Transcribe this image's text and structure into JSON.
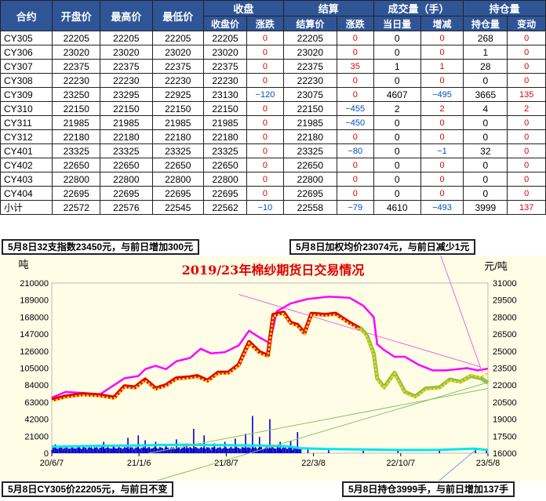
{
  "table": {
    "header_top": {
      "c1": "合约",
      "c2": "开盘价",
      "c3": "最高价",
      "c4": "最低价",
      "settle_group": "收盘",
      "clear_group": "结算",
      "vol_group": "成交量（手）",
      "oi_group": "持仓量"
    },
    "header_sub": {
      "close_price": "收盘价",
      "close_chg": "涨跌",
      "settle_price": "结算价",
      "settle_chg": "涨跌",
      "vol_today": "当日量",
      "vol_chg": "增减",
      "oi_qty": "持仓量",
      "oi_chg": "变动"
    },
    "rows": [
      {
        "c": "CY305",
        "open": "22205",
        "high": "22205",
        "low": "22205",
        "close": "22205",
        "cchg": "0",
        "settle": "22205",
        "schg": "0",
        "vol": "0",
        "vchg": "0",
        "oi": "268",
        "oichg": "0"
      },
      {
        "c": "CY306",
        "open": "23020",
        "high": "23020",
        "low": "23020",
        "close": "23020",
        "cchg": "0",
        "settle": "23020",
        "schg": "0",
        "vol": "0",
        "vchg": "0",
        "oi": "1",
        "oichg": "0"
      },
      {
        "c": "CY307",
        "open": "22375",
        "high": "22375",
        "low": "22375",
        "close": "22375",
        "cchg": "0",
        "settle": "22375",
        "schg": "35",
        "vol": "1",
        "vchg": "1",
        "oi": "28",
        "oichg": "0"
      },
      {
        "c": "CY308",
        "open": "22230",
        "high": "22230",
        "low": "22230",
        "close": "22230",
        "cchg": "0",
        "settle": "22230",
        "schg": "0",
        "vol": "0",
        "vchg": "0",
        "oi": "0",
        "oichg": "0"
      },
      {
        "c": "CY309",
        "open": "23250",
        "high": "23295",
        "low": "22925",
        "close": "23130",
        "cchg": "−120",
        "settle": "23075",
        "schg": "0",
        "vol": "4607",
        "vchg": "−495",
        "oi": "3665",
        "oichg": "135"
      },
      {
        "c": "CY310",
        "open": "22150",
        "high": "22150",
        "low": "22150",
        "close": "22150",
        "cchg": "0",
        "settle": "22150",
        "schg": "−455",
        "vol": "2",
        "vchg": "2",
        "oi": "4",
        "oichg": "2"
      },
      {
        "c": "CY311",
        "open": "21985",
        "high": "21985",
        "low": "21985",
        "close": "21985",
        "cchg": "0",
        "settle": "21985",
        "schg": "−450",
        "vol": "0",
        "vchg": "0",
        "oi": "0",
        "oichg": "0"
      },
      {
        "c": "CY312",
        "open": "22180",
        "high": "22180",
        "low": "22180",
        "close": "22180",
        "cchg": "0",
        "settle": "22180",
        "schg": "0",
        "vol": "0",
        "vchg": "0",
        "oi": "0",
        "oichg": "0"
      },
      {
        "c": "CY401",
        "open": "23325",
        "high": "23325",
        "low": "23325",
        "close": "23325",
        "cchg": "0",
        "settle": "23325",
        "schg": "−80",
        "vol": "0",
        "vchg": "−1",
        "oi": "32",
        "oichg": "0"
      },
      {
        "c": "CY402",
        "open": "22650",
        "high": "22650",
        "low": "22650",
        "close": "22650",
        "cchg": "0",
        "settle": "22650",
        "schg": "0",
        "vol": "0",
        "vchg": "0",
        "oi": "0",
        "oichg": "0"
      },
      {
        "c": "CY403",
        "open": "22800",
        "high": "22800",
        "low": "22800",
        "close": "22800",
        "cchg": "0",
        "settle": "22800",
        "schg": "0",
        "vol": "0",
        "vchg": "0",
        "oi": "0",
        "oichg": "0"
      },
      {
        "c": "CY404",
        "open": "22695",
        "high": "22695",
        "low": "22695",
        "close": "22695",
        "cchg": "0",
        "settle": "22695",
        "schg": "0",
        "vol": "0",
        "vchg": "0",
        "oi": "0",
        "oichg": "0"
      },
      {
        "c": "小计",
        "open": "22572",
        "high": "22576",
        "low": "22545",
        "close": "22562",
        "cchg": "−10",
        "settle": "22558",
        "schg": "−79",
        "vol": "4610",
        "vchg": "−493",
        "oi": "3999",
        "oichg": "137"
      }
    ]
  },
  "callouts": {
    "index": "5月8日32支指数23450元，与前日增加300元",
    "wavg": "5月8日加权均价23074元，与前日减少1元",
    "cy305": "5月8日CY305价22205元，与前日不变",
    "oi": "5月8日持仓3999手，与前日增加137手"
  },
  "colors": {
    "header_bg": "#2f5597",
    "chart_bg": "#fffde6",
    "up": "#e00000",
    "down": "#0050c0",
    "index_line": "#ff00ff",
    "wavg_line": "#ffd700",
    "cont_line": "#e00000",
    "late_line": "#8fc04b",
    "volume": "#0000cc",
    "oi_line": "#00e5ee",
    "trend1": "#e66be6",
    "trend2": "#88c070"
  },
  "chart_data": {
    "type": "line",
    "title": "2019/23年棉纱期货日交易情况",
    "ylabel_left": "吨",
    "ylabel_right": "元/吨",
    "x_ticks": [
      "20/6/7",
      "21/1/6",
      "21/8/7",
      "22/3/8",
      "22/10/7",
      "23/5/8"
    ],
    "y_left_ticks": [
      0,
      21000,
      42000,
      63000,
      84000,
      105000,
      126000,
      147000,
      168000,
      189000,
      210000
    ],
    "y_left_range": [
      0,
      210000
    ],
    "y_right_ticks": [
      16000,
      17500,
      19000,
      20500,
      22000,
      23500,
      25000,
      26500,
      28000,
      29500,
      31000
    ],
    "y_right_range": [
      16000,
      31000
    ],
    "series": [
      {
        "key": "index",
        "axis": "right",
        "points": [
          [
            0,
            20900
          ],
          [
            20,
            21400
          ],
          [
            45,
            21300
          ],
          [
            70,
            21200
          ],
          [
            85,
            21800
          ],
          [
            105,
            22600
          ],
          [
            125,
            22800
          ],
          [
            135,
            23400
          ],
          [
            150,
            23700
          ],
          [
            165,
            23400
          ],
          [
            180,
            24100
          ],
          [
            200,
            24400
          ],
          [
            215,
            25200
          ],
          [
            230,
            24800
          ],
          [
            250,
            24900
          ],
          [
            270,
            25500
          ],
          [
            285,
            26800
          ],
          [
            300,
            26200
          ],
          [
            315,
            25700
          ],
          [
            325,
            28500
          ],
          [
            345,
            29200
          ],
          [
            370,
            29600
          ],
          [
            400,
            29800
          ],
          [
            430,
            29700
          ],
          [
            450,
            29000
          ],
          [
            465,
            28000
          ],
          [
            470,
            25600
          ],
          [
            480,
            25100
          ],
          [
            495,
            24500
          ],
          [
            510,
            24500
          ],
          [
            530,
            23800
          ],
          [
            550,
            23300
          ],
          [
            570,
            23300
          ],
          [
            600,
            23500
          ],
          [
            615,
            23300
          ],
          [
            630,
            23450
          ]
        ]
      },
      {
        "key": "wavg",
        "axis": "right",
        "points": [
          [
            0,
            20600
          ],
          [
            20,
            20900
          ],
          [
            45,
            21100
          ],
          [
            70,
            21000
          ],
          [
            90,
            20800
          ],
          [
            105,
            21800
          ],
          [
            120,
            21700
          ],
          [
            135,
            22400
          ],
          [
            150,
            21600
          ],
          [
            165,
            21900
          ],
          [
            180,
            22500
          ],
          [
            200,
            22600
          ],
          [
            210,
            22700
          ],
          [
            225,
            22300
          ],
          [
            240,
            23000
          ],
          [
            255,
            23000
          ],
          [
            270,
            23700
          ],
          [
            285,
            25700
          ],
          [
            300,
            24800
          ],
          [
            312,
            24500
          ],
          [
            320,
            28100
          ],
          [
            335,
            28300
          ],
          [
            345,
            27400
          ],
          [
            355,
            27200
          ],
          [
            365,
            26500
          ],
          [
            375,
            28200
          ],
          [
            395,
            28100
          ],
          [
            410,
            28200
          ],
          [
            430,
            27400
          ],
          [
            445,
            26900
          ],
          [
            455,
            26300
          ],
          [
            465,
            24700
          ],
          [
            470,
            22500
          ],
          [
            480,
            21700
          ],
          [
            495,
            23000
          ],
          [
            510,
            21300
          ],
          [
            525,
            20900
          ],
          [
            540,
            21600
          ],
          [
            560,
            21700
          ],
          [
            575,
            22400
          ],
          [
            590,
            22200
          ],
          [
            605,
            22900
          ],
          [
            620,
            22700
          ],
          [
            630,
            23074
          ]
        ]
      },
      {
        "key": "cont",
        "axis": "right",
        "points": [
          [
            0,
            20700
          ],
          [
            20,
            21000
          ],
          [
            45,
            21200
          ],
          [
            70,
            21100
          ],
          [
            90,
            20900
          ],
          [
            105,
            21900
          ],
          [
            120,
            21800
          ],
          [
            135,
            22500
          ],
          [
            150,
            21700
          ],
          [
            165,
            22000
          ],
          [
            180,
            22600
          ],
          [
            200,
            22700
          ],
          [
            210,
            22800
          ],
          [
            225,
            22400
          ],
          [
            240,
            23100
          ],
          [
            255,
            23100
          ],
          [
            270,
            23800
          ],
          [
            285,
            25800
          ],
          [
            300,
            24900
          ],
          [
            312,
            24600
          ],
          [
            320,
            28200
          ],
          [
            335,
            28400
          ],
          [
            345,
            27500
          ],
          [
            355,
            27300
          ],
          [
            365,
            26600
          ],
          [
            375,
            28300
          ],
          [
            395,
            28200
          ],
          [
            410,
            28300
          ],
          [
            430,
            27500
          ],
          [
            445,
            27000
          ]
        ]
      },
      {
        "key": "late",
        "axis": "right",
        "points": [
          [
            445,
            27100
          ],
          [
            455,
            26400
          ],
          [
            465,
            24800
          ],
          [
            470,
            22600
          ],
          [
            480,
            21800
          ],
          [
            495,
            23100
          ],
          [
            510,
            21400
          ],
          [
            525,
            21000
          ],
          [
            540,
            21700
          ],
          [
            560,
            21800
          ],
          [
            575,
            22500
          ],
          [
            590,
            22300
          ],
          [
            605,
            22800
          ],
          [
            620,
            22600
          ],
          [
            630,
            22205
          ]
        ]
      },
      {
        "key": "oi",
        "axis": "left",
        "points": [
          [
            0,
            8000
          ],
          [
            60,
            9000
          ],
          [
            120,
            9500
          ],
          [
            180,
            10500
          ],
          [
            240,
            10000
          ],
          [
            300,
            9500
          ],
          [
            340,
            8500
          ],
          [
            360,
            6000
          ],
          [
            400,
            5000
          ],
          [
            450,
            4500
          ],
          [
            500,
            4000
          ],
          [
            560,
            4200
          ],
          [
            610,
            5500
          ],
          [
            630,
            3999
          ]
        ]
      },
      {
        "key": "trend1",
        "axis": "right",
        "points": [
          [
            270,
            30000
          ],
          [
            620,
            23600
          ]
        ]
      },
      {
        "key": "trend2",
        "axis": "right",
        "points": [
          [
            140,
            16000
          ],
          [
            630,
            21700
          ]
        ]
      }
    ],
    "volume_spikes": [
      [
        5,
        11000
      ],
      [
        40,
        9000
      ],
      [
        75,
        14000
      ],
      [
        90,
        10000
      ],
      [
        110,
        19000
      ],
      [
        125,
        22000
      ],
      [
        135,
        16000
      ],
      [
        150,
        14000
      ],
      [
        165,
        9000
      ],
      [
        180,
        17000
      ],
      [
        195,
        12000
      ],
      [
        205,
        30000
      ],
      [
        220,
        22000
      ],
      [
        235,
        12000
      ],
      [
        250,
        14000
      ],
      [
        265,
        18000
      ],
      [
        280,
        24000
      ],
      [
        290,
        46000
      ],
      [
        300,
        20000
      ],
      [
        315,
        42000
      ],
      [
        330,
        14000
      ],
      [
        345,
        15000
      ],
      [
        355,
        26000
      ],
      [
        370,
        6000
      ],
      [
        400,
        4000
      ],
      [
        450,
        3000
      ],
      [
        500,
        3000
      ],
      [
        560,
        3000
      ],
      [
        612,
        6000
      ],
      [
        628,
        4610
      ]
    ]
  }
}
